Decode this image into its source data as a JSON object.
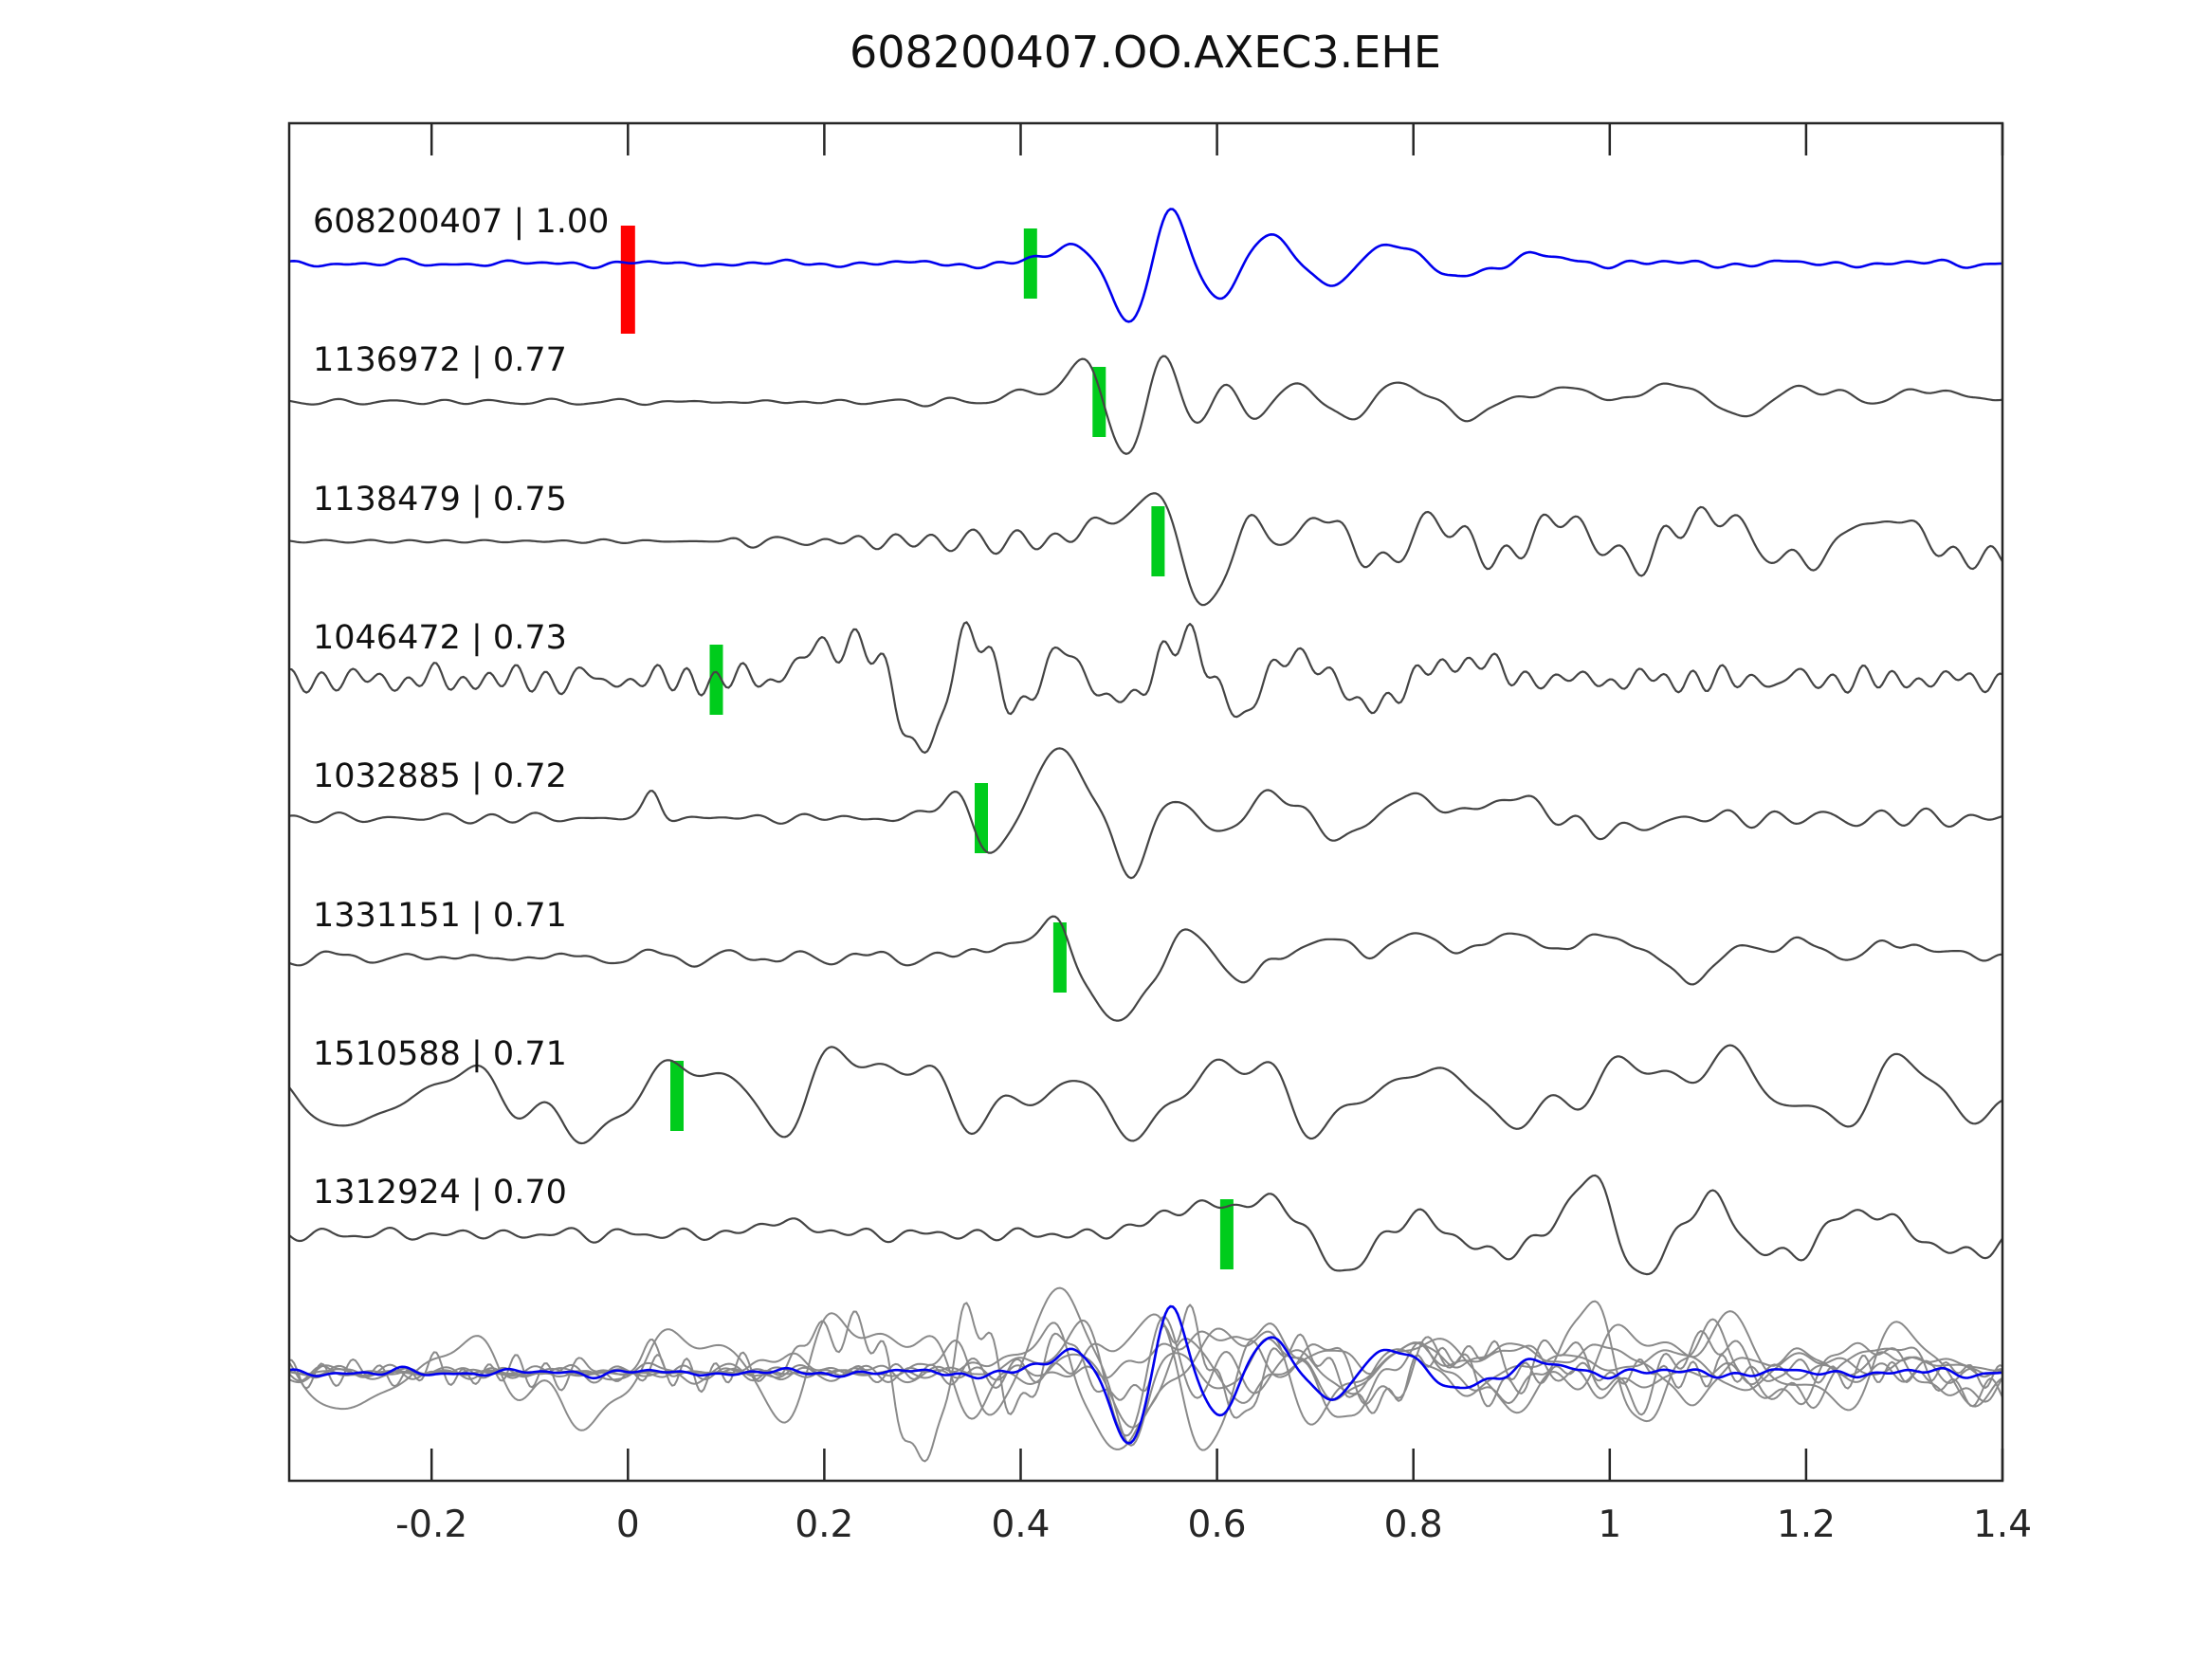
{
  "chart_data": {
    "type": "line",
    "title": "608200407.OO.AXEC3.EHE",
    "description": "Stack of cross-correlated seismic waveforms: template event on top (blue) with correlation 1.00, seven detected events below (dark gray) sorted by correlation coefficient, and all traces overlaid at the bottom (light gray with blue template on top). Green bars mark pick times; red bar marks template origin time 0.",
    "xlabel": "",
    "ylabel": "",
    "xlim": [
      -0.345,
      1.4
    ],
    "grid": false,
    "x_ticks": [
      {
        "value": -0.2,
        "label": "-0.2"
      },
      {
        "value": 0.0,
        "label": "0"
      },
      {
        "value": 0.2,
        "label": "0.2"
      },
      {
        "value": 0.4,
        "label": "0.4"
      },
      {
        "value": 0.6,
        "label": "0.6"
      },
      {
        "value": 0.8,
        "label": "0.8"
      },
      {
        "value": 1.0,
        "label": "1"
      },
      {
        "value": 1.2,
        "label": "1.2"
      },
      {
        "value": 1.4,
        "label": "1.4"
      }
    ],
    "colors": {
      "template_trace": "#0000ee",
      "detection_trace": "#444444",
      "overlay_trace": "#8a8a8a",
      "pick_marker": "#00cc1c",
      "origin_marker": "#ff0000",
      "axis": "#262626",
      "text": "#111111"
    },
    "traces": [
      {
        "id": "608200407",
        "cc": "1.00",
        "label": "608200407 | 1.00",
        "role": "template",
        "color": "#0000ee",
        "pick": {
          "t": 0.41,
          "color": "#00cc1c"
        },
        "origin_marker": {
          "t": 0.0,
          "color": "#ff0000"
        },
        "approx_waveform": {
          "seed": 7,
          "freq": 15,
          "noise_env": [
            [
              -0.345,
              0.06
            ],
            [
              0.25,
              0.07
            ],
            [
              0.33,
              0.1
            ],
            [
              0.42,
              0.1
            ],
            [
              0.47,
              0.08
            ],
            [
              0.75,
              0.06
            ],
            [
              0.95,
              0.1
            ],
            [
              1.15,
              0.08
            ],
            [
              1.4,
              0.07
            ]
          ],
          "bumps": [
            [
              0.455,
              0.3,
              0.02
            ],
            [
              0.515,
              -0.95,
              0.02
            ],
            [
              0.551,
              0.98,
              0.017
            ],
            [
              0.601,
              -0.52,
              0.02
            ],
            [
              0.655,
              0.45,
              0.022
            ],
            [
              0.712,
              -0.34,
              0.024
            ],
            [
              0.775,
              0.3,
              0.026
            ],
            [
              0.845,
              -0.18,
              0.028
            ],
            [
              0.93,
              0.1,
              0.03
            ]
          ]
        }
      },
      {
        "id": "1136972",
        "cc": "0.77",
        "label": "1136972 | 0.77",
        "role": "detection",
        "color": "#444444",
        "pick": {
          "t": 0.48,
          "color": "#00cc1c"
        },
        "approx_waveform": {
          "seed": 21,
          "freq": 16,
          "noise_env": [
            [
              -0.345,
              0.06
            ],
            [
              0.2,
              0.08
            ],
            [
              0.35,
              0.1
            ],
            [
              0.43,
              0.08
            ],
            [
              0.5,
              0.1
            ],
            [
              0.6,
              0.12
            ],
            [
              0.8,
              0.12
            ],
            [
              1.4,
              0.12
            ]
          ],
          "bumps": [
            [
              0.405,
              0.15,
              0.02
            ],
            [
              0.468,
              0.8,
              0.018
            ],
            [
              0.507,
              -1.0,
              0.021
            ],
            [
              0.541,
              0.88,
              0.017
            ],
            [
              0.578,
              -0.38,
              0.016
            ],
            [
              0.607,
              0.33,
              0.015
            ],
            [
              0.638,
              -0.28,
              0.018
            ],
            [
              0.683,
              0.3,
              0.022
            ],
            [
              0.733,
              -0.3,
              0.022
            ],
            [
              0.788,
              0.33,
              0.024
            ],
            [
              0.85,
              -0.22,
              0.026
            ],
            [
              0.95,
              0.2,
              0.03
            ],
            [
              1.07,
              0.28,
              0.028
            ],
            [
              1.13,
              -0.25,
              0.024
            ],
            [
              1.2,
              0.22,
              0.028
            ],
            [
              1.33,
              0.18,
              0.03
            ]
          ]
        }
      },
      {
        "id": "1138479",
        "cc": "0.75",
        "label": "1138479 | 0.75",
        "role": "detection",
        "color": "#444444",
        "pick": {
          "t": 0.54,
          "color": "#00cc1c"
        },
        "approx_waveform": {
          "seed": 33,
          "freq": 19,
          "noise_env": [
            [
              -0.345,
              0.03
            ],
            [
              0.09,
              0.03
            ],
            [
              0.12,
              0.22
            ],
            [
              0.3,
              0.22
            ],
            [
              0.42,
              0.18
            ],
            [
              0.48,
              0.12
            ],
            [
              0.6,
              0.15
            ],
            [
              0.7,
              0.3
            ],
            [
              1.4,
              0.32
            ]
          ],
          "bumps": [
            [
              0.49,
              0.32,
              0.024
            ],
            [
              0.544,
              0.88,
              0.019
            ],
            [
              0.586,
              -1.1,
              0.024
            ],
            [
              0.633,
              0.5,
              0.02
            ],
            [
              0.67,
              -0.3,
              0.02
            ],
            [
              0.705,
              0.5,
              0.024
            ],
            [
              0.765,
              -0.4,
              0.028
            ],
            [
              0.825,
              0.4,
              0.028
            ],
            [
              0.885,
              -0.35,
              0.03
            ],
            [
              0.95,
              0.4,
              0.03
            ],
            [
              1.02,
              -0.35,
              0.03
            ],
            [
              1.1,
              0.42,
              0.032
            ],
            [
              1.19,
              -0.35,
              0.03
            ],
            [
              1.28,
              0.35,
              0.032
            ],
            [
              1.37,
              -0.3,
              0.03
            ]
          ]
        }
      },
      {
        "id": "1046472",
        "cc": "0.73",
        "label": "1046472 | 0.73",
        "role": "detection",
        "color": "#444444",
        "pick": {
          "t": 0.09,
          "color": "#00cc1c"
        },
        "approx_waveform": {
          "seed": 44,
          "freq": 21,
          "noise_env": [
            [
              -0.345,
              0.3
            ],
            [
              0.05,
              0.3
            ],
            [
              0.15,
              0.33
            ],
            [
              0.45,
              0.33
            ],
            [
              0.7,
              0.3
            ],
            [
              1.0,
              0.26
            ],
            [
              1.4,
              0.24
            ]
          ],
          "bumps": [
            [
              0.2,
              0.45,
              0.025
            ],
            [
              0.247,
              0.6,
              0.018
            ],
            [
              0.298,
              -1.05,
              0.026
            ],
            [
              0.35,
              0.85,
              0.02
            ],
            [
              0.4,
              -0.5,
              0.02
            ],
            [
              0.445,
              0.55,
              0.02
            ],
            [
              0.5,
              -0.45,
              0.025
            ],
            [
              0.565,
              0.65,
              0.028
            ],
            [
              0.625,
              -0.6,
              0.025
            ],
            [
              0.68,
              0.5,
              0.028
            ],
            [
              0.75,
              -0.4,
              0.03
            ],
            [
              0.85,
              0.3,
              0.03
            ]
          ]
        }
      },
      {
        "id": "1032885",
        "cc": "0.72",
        "label": "1032885 | 0.72",
        "role": "detection",
        "color": "#444444",
        "pick": {
          "t": 0.36,
          "color": "#00cc1c"
        },
        "approx_waveform": {
          "seed": 55,
          "freq": 17,
          "noise_env": [
            [
              -0.345,
              0.09
            ],
            [
              0.0,
              0.1
            ],
            [
              0.28,
              0.12
            ],
            [
              0.33,
              0.15
            ],
            [
              0.6,
              0.15
            ],
            [
              0.8,
              0.18
            ],
            [
              1.4,
              0.15
            ]
          ],
          "bumps": [
            [
              0.025,
              0.38,
              0.008
            ],
            [
              0.335,
              0.38,
              0.018
            ],
            [
              0.376,
              -0.6,
              0.02
            ],
            [
              0.432,
              0.9,
              0.024
            ],
            [
              0.468,
              0.5,
              0.018
            ],
            [
              0.513,
              -0.9,
              0.026
            ],
            [
              0.553,
              0.6,
              0.02
            ],
            [
              0.605,
              -0.35,
              0.024
            ],
            [
              0.655,
              0.45,
              0.028
            ],
            [
              0.725,
              -0.35,
              0.028
            ],
            [
              0.79,
              0.32,
              0.03
            ],
            [
              0.9,
              0.28,
              0.032
            ],
            [
              1.0,
              -0.22,
              0.03
            ]
          ]
        }
      },
      {
        "id": "1331151",
        "cc": "0.71",
        "label": "1331151 | 0.71",
        "role": "detection",
        "color": "#444444",
        "pick": {
          "t": 0.44,
          "color": "#00cc1c"
        },
        "approx_waveform": {
          "seed": 66,
          "freq": 18,
          "noise_env": [
            [
              -0.345,
              0.14
            ],
            [
              0.3,
              0.16
            ],
            [
              0.55,
              0.15
            ],
            [
              0.75,
              0.16
            ],
            [
              1.0,
              0.18
            ],
            [
              1.4,
              0.16
            ]
          ],
          "bumps": [
            [
              0.38,
              0.2,
              0.02
            ],
            [
              0.435,
              0.6,
              0.018
            ],
            [
              0.5,
              -1.0,
              0.028
            ],
            [
              0.565,
              0.4,
              0.024
            ],
            [
              0.63,
              -0.32,
              0.024
            ],
            [
              0.7,
              0.25,
              0.028
            ],
            [
              0.8,
              0.28,
              0.03
            ],
            [
              0.9,
              0.3,
              0.032
            ],
            [
              1.0,
              0.32,
              0.03
            ],
            [
              1.08,
              -0.28,
              0.028
            ],
            [
              1.17,
              0.25,
              0.03
            ],
            [
              1.3,
              0.2,
              0.032
            ]
          ]
        }
      },
      {
        "id": "1510588",
        "cc": "0.71",
        "label": "1510588 | 0.71",
        "role": "detection",
        "color": "#444444",
        "pick": {
          "t": 0.05,
          "color": "#00cc1c"
        },
        "approx_waveform": {
          "seed": 77,
          "freq": 10,
          "noise_env": [
            [
              -0.345,
              0.4
            ],
            [
              0.2,
              0.42
            ],
            [
              0.5,
              0.4
            ],
            [
              0.8,
              0.38
            ],
            [
              1.1,
              0.4
            ],
            [
              1.4,
              0.42
            ]
          ],
          "bumps": [
            [
              -0.27,
              -0.45,
              0.035
            ],
            [
              -0.17,
              0.35,
              0.04
            ],
            [
              -0.05,
              -0.55,
              0.045
            ],
            [
              0.07,
              0.5,
              0.045
            ],
            [
              0.155,
              -0.45,
              0.035
            ],
            [
              0.225,
              0.65,
              0.028
            ],
            [
              0.3,
              0.5,
              0.03
            ],
            [
              0.365,
              -0.55,
              0.035
            ],
            [
              0.44,
              0.5,
              0.028
            ],
            [
              0.52,
              -0.6,
              0.038
            ],
            [
              0.615,
              0.75,
              0.035
            ],
            [
              0.7,
              -0.5,
              0.038
            ],
            [
              0.8,
              0.4,
              0.04
            ],
            [
              0.92,
              -0.35,
              0.04
            ],
            [
              1.02,
              0.45,
              0.04
            ],
            [
              1.13,
              0.5,
              0.035
            ],
            [
              1.225,
              -0.45,
              0.035
            ],
            [
              1.31,
              0.55,
              0.035
            ],
            [
              1.385,
              -0.5,
              0.03
            ]
          ]
        }
      },
      {
        "id": "1312924",
        "cc": "0.70",
        "label": "1312924 | 0.70",
        "role": "detection",
        "color": "#444444",
        "pick": {
          "t": 0.61,
          "color": "#00cc1c"
        },
        "approx_waveform": {
          "seed": 88,
          "freq": 16,
          "noise_env": [
            [
              -0.345,
              0.1
            ],
            [
              0.15,
              0.12
            ],
            [
              0.4,
              0.14
            ],
            [
              0.55,
              0.15
            ],
            [
              0.8,
              0.18
            ],
            [
              1.1,
              0.18
            ],
            [
              1.4,
              0.16
            ]
          ],
          "bumps": [
            [
              0.16,
              0.2,
              0.025
            ],
            [
              0.55,
              0.3,
              0.025
            ],
            [
              0.592,
              0.35,
              0.018
            ],
            [
              0.655,
              0.6,
              0.028
            ],
            [
              0.73,
              -0.55,
              0.032
            ],
            [
              0.8,
              0.32,
              0.03
            ],
            [
              0.88,
              -0.3,
              0.03
            ],
            [
              0.98,
              0.95,
              0.02
            ],
            [
              1.035,
              -0.6,
              0.026
            ],
            [
              1.1,
              0.6,
              0.024
            ],
            [
              1.17,
              -0.38,
              0.028
            ],
            [
              1.26,
              0.35,
              0.03
            ],
            [
              1.36,
              -0.3,
              0.03
            ]
          ]
        }
      }
    ],
    "overlay_row": {
      "description": "All eight traces overlaid, normalized smaller; gray detections behind, blue template on top.",
      "gray_color": "#8a8a8a",
      "template_color": "#0000ee"
    }
  }
}
